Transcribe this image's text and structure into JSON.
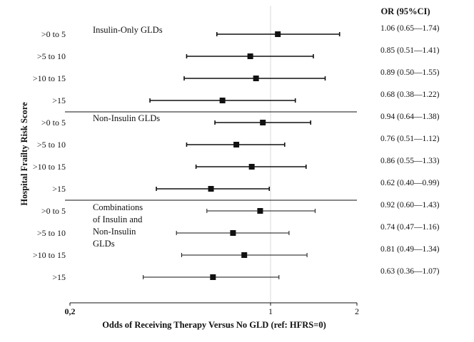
{
  "chart_data": {
    "type": "forest",
    "title": "",
    "xlabel": "Odds of Receiving Therapy Versus No GLD (ref: HFRS=0)",
    "ylabel": "Hospital Frailty Risk Score",
    "or_header": "OR (95%CI)",
    "x_scale": "log",
    "xlim": [
      0.2,
      2
    ],
    "x_ticks": [
      {
        "value": 0.2,
        "label": "0,2"
      },
      {
        "value": 1,
        "label": "1"
      },
      {
        "value": 2,
        "label": "2"
      }
    ],
    "reference_line": 1,
    "groups": [
      {
        "name": "Insulin-Only GLDs",
        "name_lines": [
          "Insulin-Only GLDs"
        ],
        "rows": [
          {
            "label": ">0 to 5",
            "or": 1.06,
            "lo": 0.65,
            "hi": 1.74,
            "text": "1.06 (0.65—1.74)"
          },
          {
            "label": ">5 to 10",
            "or": 0.85,
            "lo": 0.51,
            "hi": 1.41,
            "text": "0.85 (0.51—1.41)"
          },
          {
            "label": ">10 to 15",
            "or": 0.89,
            "lo": 0.5,
            "hi": 1.55,
            "text": "0.89 (0.50—1.55)"
          },
          {
            "label": ">15",
            "or": 0.68,
            "lo": 0.38,
            "hi": 1.22,
            "text": "0.68 (0.38—1.22)"
          }
        ]
      },
      {
        "name": "Non-Insulin GLDs",
        "name_lines": [
          "Non-Insulin GLDs"
        ],
        "rows": [
          {
            "label": ">0 to 5",
            "or": 0.94,
            "lo": 0.64,
            "hi": 1.38,
            "text": "0.94 (0.64—1.38)"
          },
          {
            "label": ">5 to 10",
            "or": 0.76,
            "lo": 0.51,
            "hi": 1.12,
            "text": "0.76 (0.51—1.12)"
          },
          {
            "label": ">10 to 15",
            "or": 0.86,
            "lo": 0.55,
            "hi": 1.33,
            "text": "0.86 (0.55—1.33)"
          },
          {
            "label": ">15",
            "or": 0.62,
            "lo": 0.4,
            "hi": 0.99,
            "text": "0.62 (0.40—0.99)"
          }
        ]
      },
      {
        "name": "Combinations of Insulin and Non-Insulin GLDs",
        "name_lines": [
          "Combinations",
          "of Insulin and",
          "Non-Insulin",
          "GLDs"
        ],
        "rows": [
          {
            "label": ">0 to 5",
            "or": 0.92,
            "lo": 0.6,
            "hi": 1.43,
            "text": "0.92 (0.60—1.43)"
          },
          {
            "label": ">5 to 10",
            "or": 0.74,
            "lo": 0.47,
            "hi": 1.16,
            "text": "0.74 (0.47—1.16)"
          },
          {
            "label": ">10 to 15",
            "or": 0.81,
            "lo": 0.49,
            "hi": 1.34,
            "text": "0.81 (0.49—1.34)"
          },
          {
            "label": ">15",
            "or": 0.63,
            "lo": 0.36,
            "hi": 1.07,
            "text": "0.63 (0.36—1.07)"
          }
        ]
      }
    ],
    "colors": {
      "marker": "#111111",
      "ci_line": "#111111",
      "ref_line": "#d9d9d9",
      "axis": "#111111",
      "text": "#111111"
    }
  }
}
